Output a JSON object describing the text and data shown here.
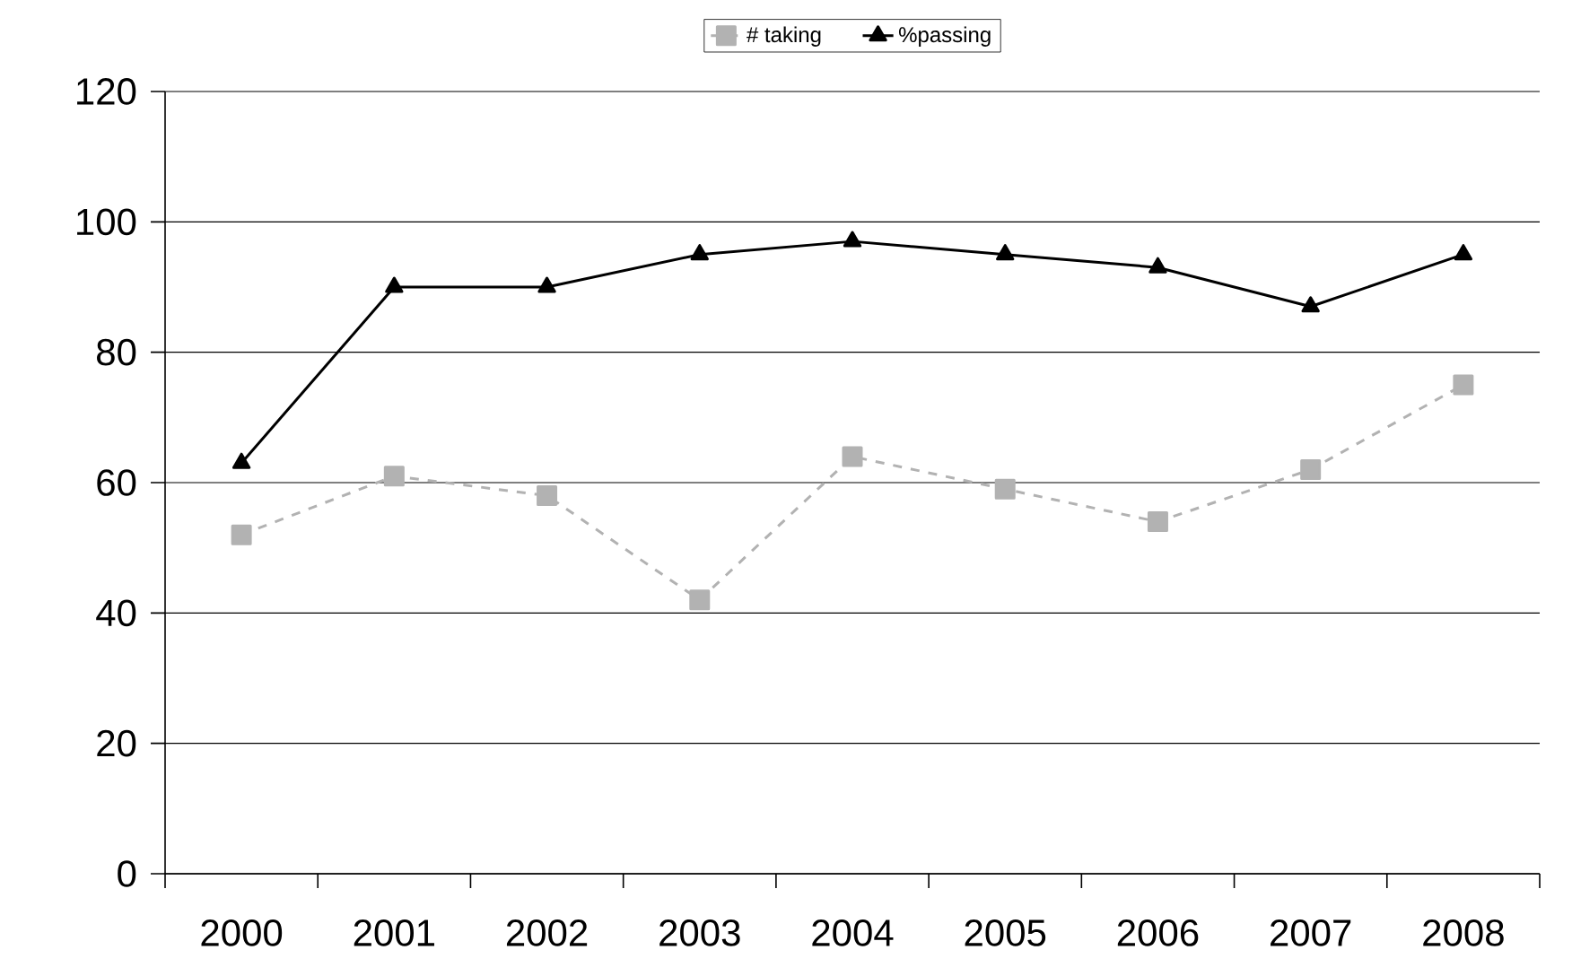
{
  "chart_data": {
    "type": "line",
    "categories": [
      "2000",
      "2001",
      "2002",
      "2003",
      "2004",
      "2005",
      "2006",
      "2007",
      "2008"
    ],
    "series": [
      {
        "name": "# taking",
        "color": "#b2b2b2",
        "values": [
          52,
          61,
          58,
          42,
          64,
          59,
          54,
          62,
          75
        ],
        "marker": "square",
        "line_style": "dashed"
      },
      {
        "name": "%passing",
        "color": "#000000",
        "values": [
          63,
          90,
          90,
          95,
          97,
          95,
          93,
          87,
          95
        ],
        "marker": "triangle",
        "line_style": "solid"
      }
    ],
    "ylim": [
      0,
      120
    ],
    "yticks": [
      0,
      20,
      40,
      60,
      80,
      100,
      120
    ],
    "grid": "y",
    "legend": "top"
  }
}
